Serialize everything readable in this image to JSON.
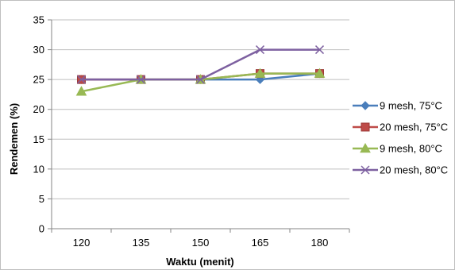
{
  "chart_data": {
    "type": "line",
    "xlabel": "Waktu (menit)",
    "ylabel": "Rendemen (%)",
    "categories": [
      "120",
      "135",
      "150",
      "165",
      "180"
    ],
    "ylim": [
      0,
      35
    ],
    "yticks": [
      0,
      5,
      10,
      15,
      20,
      25,
      30,
      35
    ],
    "grid": "horizontal",
    "legend_position": "right",
    "series": [
      {
        "name": "9 mesh, 75°C",
        "values": [
          25,
          25,
          25,
          25,
          26
        ],
        "color": "#4a7ebb",
        "marker": "diamond"
      },
      {
        "name": "20 mesh, 75°C",
        "values": [
          25,
          25,
          25,
          26,
          26
        ],
        "color": "#be4b48",
        "marker": "square"
      },
      {
        "name": "9 mesh, 80°C",
        "values": [
          23,
          25,
          25,
          26,
          26
        ],
        "color": "#98b954",
        "marker": "triangle"
      },
      {
        "name": "20 mesh, 80°C",
        "values": [
          25,
          25,
          25,
          30,
          30
        ],
        "color": "#7d60a0",
        "marker": "x"
      }
    ]
  }
}
